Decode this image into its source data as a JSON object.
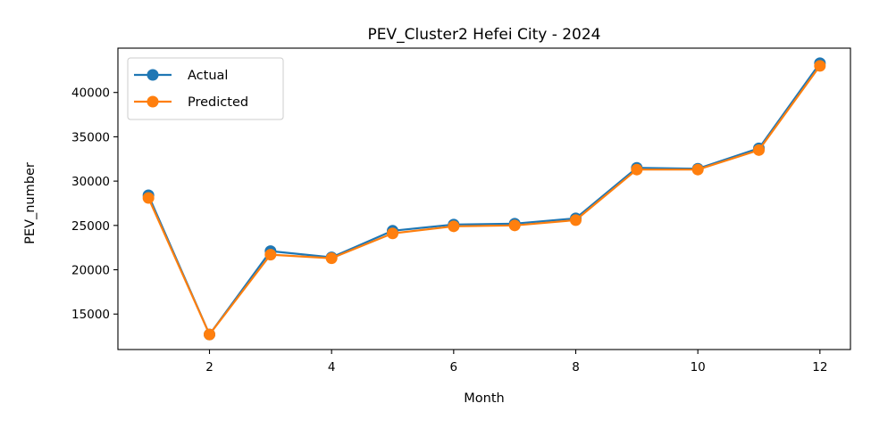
{
  "chart_data": {
    "type": "line",
    "title": "PEV_Cluster2 Hefei City - 2024",
    "xlabel": "Month",
    "ylabel": "PEV_number",
    "x": [
      1,
      2,
      3,
      4,
      5,
      6,
      7,
      8,
      9,
      10,
      11,
      12
    ],
    "xlim": [
      0.5,
      12.5
    ],
    "ylim": [
      11000,
      45000
    ],
    "xticks": [
      2,
      4,
      6,
      8,
      10,
      12
    ],
    "yticks": [
      15000,
      20000,
      25000,
      30000,
      35000,
      40000
    ],
    "grid": false,
    "legend_position": "top-left",
    "series": [
      {
        "name": "Actual",
        "color": "#1f77b4",
        "marker": "circle",
        "values": [
          28400,
          12700,
          22100,
          21400,
          24400,
          25100,
          25200,
          25800,
          31500,
          31400,
          33700,
          43300
        ]
      },
      {
        "name": "Predicted",
        "color": "#ff7f0e",
        "marker": "circle",
        "values": [
          28100,
          12700,
          21700,
          21300,
          24100,
          24900,
          25000,
          25600,
          31300,
          31300,
          33500,
          43000
        ]
      }
    ]
  }
}
